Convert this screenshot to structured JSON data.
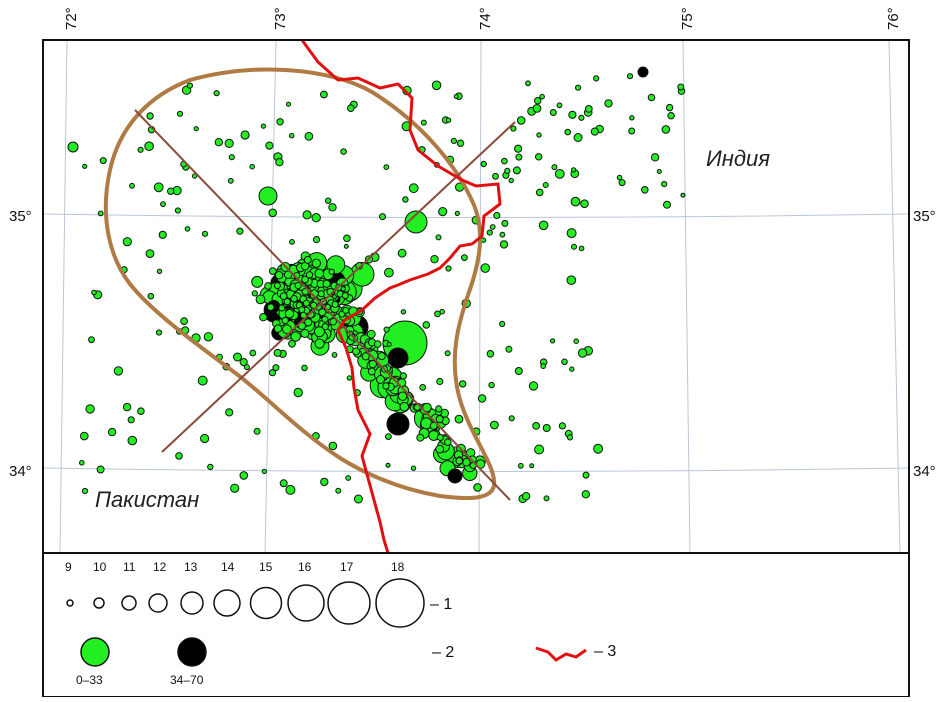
{
  "map": {
    "longitude_labels": [
      "72°",
      "73°",
      "74°",
      "75°",
      "76°"
    ],
    "latitude_labels": [
      "35°",
      "34°"
    ],
    "country_labels": {
      "india": "Индия",
      "pakistan": "Пакистан"
    },
    "colors": {
      "shallow_fill": "#22ee22",
      "deep_fill": "#000000",
      "border": "#e01010",
      "zone_outline": "#b07a45",
      "axis_lines": "#8a4a3a",
      "graticule": "#b9c7d6"
    }
  },
  "legend": {
    "classes": [
      "9",
      "10",
      "11",
      "12",
      "13",
      "14",
      "15",
      "16",
      "17",
      "18"
    ],
    "item1_label": "– 1",
    "item2_label": "– 2",
    "item3_label": "– 3",
    "depth_ranges": [
      "0–33",
      "34–70"
    ]
  }
}
